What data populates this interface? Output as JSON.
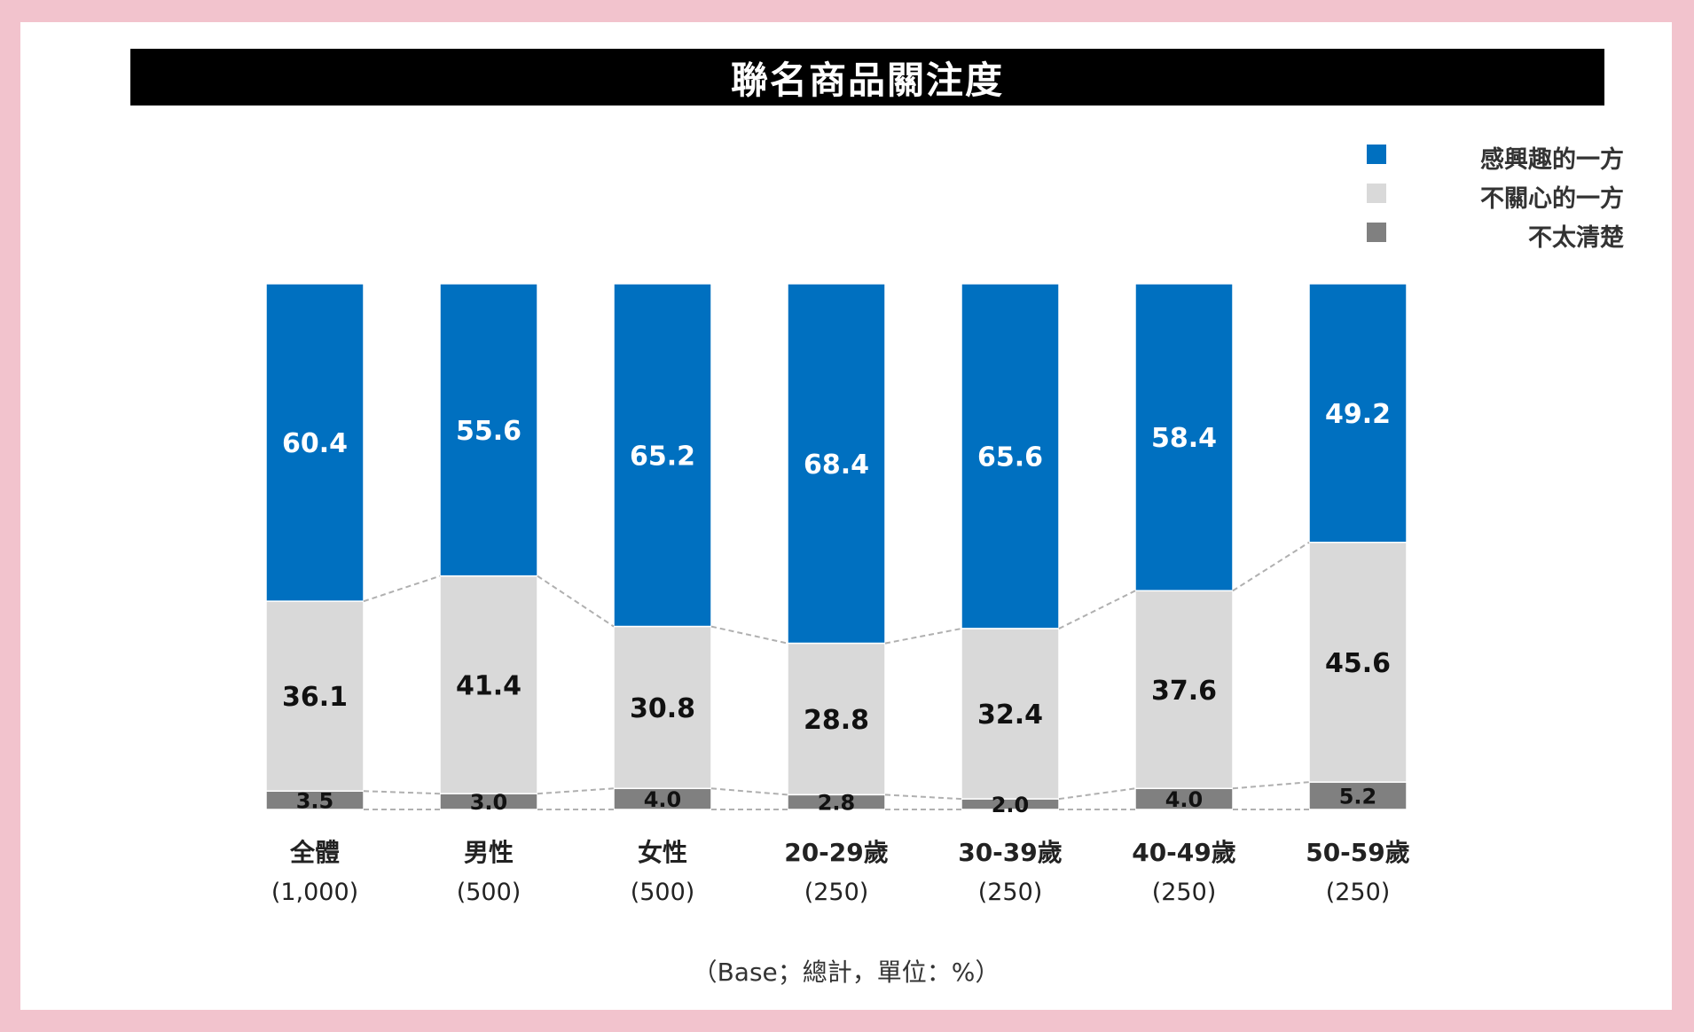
{
  "colors": {
    "interested": "#0070c0",
    "not_interested": "#d9d9d9",
    "not_sure": "#808080",
    "frame": "#f2c3cd"
  },
  "footnote": "（Base；總計，單位：%）",
  "chart_data": {
    "type": "bar",
    "stacked": true,
    "percent": true,
    "title": "聯名商品關注度",
    "categories": [
      "全體",
      "男性",
      "女性",
      "20-29歲",
      "30-39歲",
      "40-49歲",
      "50-59歲"
    ],
    "bases": [
      "(1,000)",
      "(500)",
      "(500)",
      "(250)",
      "(250)",
      "(250)",
      "(250)"
    ],
    "series": [
      {
        "name": "感興趣的一方",
        "values": [
          60.4,
          55.6,
          65.2,
          68.4,
          65.6,
          58.4,
          49.2
        ]
      },
      {
        "name": "不關心的一方",
        "values": [
          36.1,
          41.4,
          30.8,
          28.8,
          32.4,
          37.6,
          45.6
        ]
      },
      {
        "name": "不太清楚",
        "values": [
          3.5,
          3.0,
          4.0,
          2.8,
          2.0,
          4.0,
          5.2
        ]
      }
    ],
    "ylim": [
      0,
      100
    ],
    "legend_position": "top-right",
    "grid": false
  }
}
